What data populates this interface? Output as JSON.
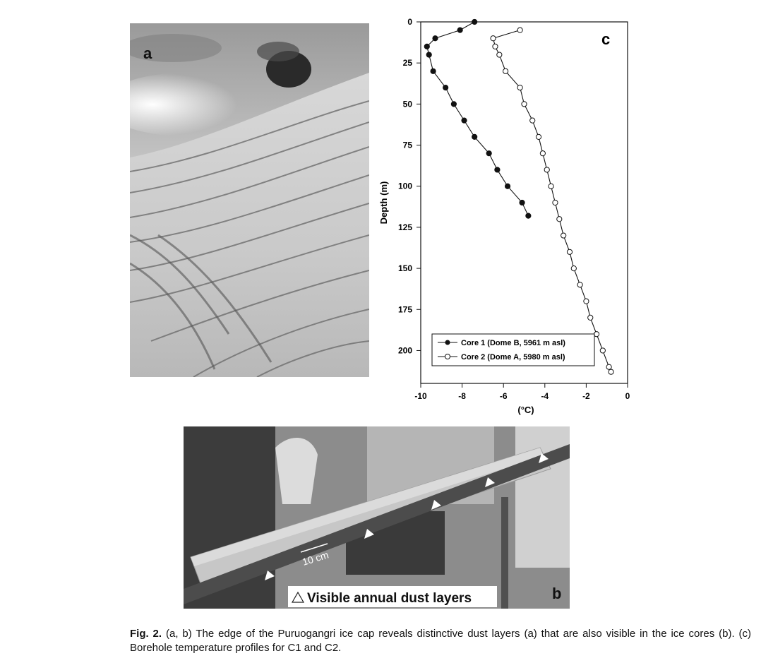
{
  "panels": {
    "a": {
      "label": "a"
    },
    "b": {
      "label": "b",
      "scale_label": "10 cm",
      "legend_text": "Visible annual dust layers"
    },
    "c": {
      "label": "c"
    }
  },
  "chart_data": {
    "type": "line",
    "xlabel": "(°C)",
    "ylabel": "Depth (m)",
    "xlim": [
      -10,
      0
    ],
    "ylim": [
      0,
      220
    ],
    "y_inverted": true,
    "x_ticks": [
      "-10",
      "-8",
      "-6",
      "-4",
      "-2",
      "0"
    ],
    "y_ticks": [
      "0",
      "25",
      "50",
      "75",
      "100",
      "125",
      "150",
      "175",
      "200"
    ],
    "legend_position": "bottom-left",
    "series": [
      {
        "name": "Core 1 (Dome B, 5961 m asl)",
        "marker": "filled-circle",
        "points": [
          [
            -7.4,
            0
          ],
          [
            -8.1,
            5
          ],
          [
            -9.3,
            10
          ],
          [
            -9.7,
            15
          ],
          [
            -9.6,
            20
          ],
          [
            -9.4,
            30
          ],
          [
            -8.8,
            40
          ],
          [
            -8.4,
            50
          ],
          [
            -7.9,
            60
          ],
          [
            -7.4,
            70
          ],
          [
            -6.7,
            80
          ],
          [
            -6.3,
            90
          ],
          [
            -5.8,
            100
          ],
          [
            -5.1,
            110
          ],
          [
            -4.8,
            118
          ]
        ]
      },
      {
        "name": "Core 2 (Dome A, 5980 m asl)",
        "marker": "open-circle",
        "points": [
          [
            -5.2,
            5
          ],
          [
            -6.5,
            10
          ],
          [
            -6.4,
            15
          ],
          [
            -6.2,
            20
          ],
          [
            -5.9,
            30
          ],
          [
            -5.2,
            40
          ],
          [
            -5.0,
            50
          ],
          [
            -4.6,
            60
          ],
          [
            -4.3,
            70
          ],
          [
            -4.1,
            80
          ],
          [
            -3.9,
            90
          ],
          [
            -3.7,
            100
          ],
          [
            -3.5,
            110
          ],
          [
            -3.3,
            120
          ],
          [
            -3.1,
            130
          ],
          [
            -2.8,
            140
          ],
          [
            -2.6,
            150
          ],
          [
            -2.3,
            160
          ],
          [
            -2.0,
            170
          ],
          [
            -1.8,
            180
          ],
          [
            -1.5,
            190
          ],
          [
            -1.2,
            200
          ],
          [
            -0.9,
            210
          ],
          [
            -0.8,
            213
          ]
        ]
      }
    ]
  },
  "caption": {
    "label": "Fig. 2.",
    "text": "(a, b) The edge of the Puruogangri ice cap reveals distinctive dust layers (a) that are also visible in the ice cores (b). (c) Borehole temperature profiles for C1 and C2."
  }
}
